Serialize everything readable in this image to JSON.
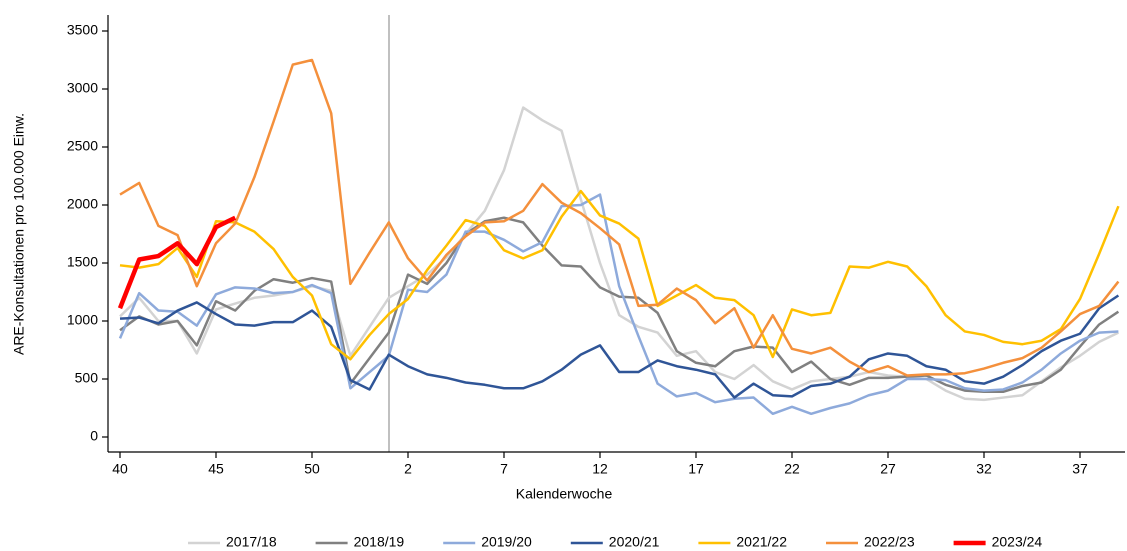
{
  "chart_data": {
    "type": "line",
    "x_label": "Kalenderwoche",
    "y_label": "ARE-Konsultationen pro 100.000 Einw.",
    "categories": [
      "40",
      null,
      null,
      null,
      null,
      "45",
      null,
      null,
      null,
      null,
      "50",
      null,
      null,
      null,
      null,
      "2",
      null,
      null,
      null,
      null,
      "7",
      null,
      null,
      null,
      null,
      "12",
      null,
      null,
      null,
      null,
      "17",
      null,
      null,
      null,
      null,
      "22",
      null,
      null,
      null,
      null,
      "27",
      null,
      null,
      null,
      null,
      "32",
      null,
      null,
      null,
      null,
      "37",
      null,
      null
    ],
    "ylim": [
      0,
      3500
    ],
    "yticks": [
      0,
      500,
      1000,
      1500,
      2000,
      2500,
      3000,
      3500
    ],
    "legend": "bottom",
    "series": [
      {
        "name": "2017/18",
        "color": "#d3d3d3",
        "line_width": 2.5,
        "values": [
          1040,
          1200,
          1000,
          1000,
          720,
          1100,
          1150,
          1200,
          1220,
          1250,
          1300,
          1260,
          700,
          950,
          1200,
          1300,
          1400,
          1550,
          1750,
          1950,
          2300,
          2840,
          2730,
          2640,
          2050,
          1500,
          1050,
          950,
          900,
          700,
          740,
          560,
          500,
          620,
          480,
          410,
          480,
          500,
          520,
          560,
          530,
          520,
          500,
          400,
          330,
          320,
          340,
          360,
          480,
          600,
          700,
          820,
          900
        ]
      },
      {
        "name": "2018/19",
        "color": "#808080",
        "line_width": 2.5,
        "values": [
          920,
          1040,
          970,
          1000,
          790,
          1170,
          1090,
          1260,
          1360,
          1330,
          1370,
          1340,
          460,
          680,
          900,
          1400,
          1320,
          1500,
          1750,
          1860,
          1890,
          1850,
          1650,
          1480,
          1470,
          1290,
          1210,
          1200,
          1070,
          740,
          640,
          610,
          740,
          780,
          770,
          560,
          650,
          500,
          450,
          510,
          510,
          520,
          530,
          450,
          400,
          390,
          390,
          440,
          470,
          580,
          780,
          970,
          1080
        ]
      },
      {
        "name": "2019/20",
        "color": "#8eaadb",
        "line_width": 2.5,
        "values": [
          850,
          1240,
          1090,
          1080,
          960,
          1230,
          1290,
          1280,
          1240,
          1250,
          1310,
          1240,
          420,
          560,
          700,
          1270,
          1250,
          1400,
          1770,
          1770,
          1700,
          1600,
          1680,
          1990,
          2000,
          2090,
          1300,
          870,
          460,
          350,
          380,
          300,
          330,
          340,
          200,
          260,
          200,
          250,
          290,
          360,
          400,
          500,
          500,
          490,
          420,
          400,
          410,
          470,
          580,
          720,
          830,
          900,
          910
        ]
      },
      {
        "name": "2020/21",
        "color": "#2f5597",
        "line_width": 2.5,
        "values": [
          1020,
          1030,
          980,
          1090,
          1160,
          1060,
          970,
          960,
          990,
          990,
          1090,
          950,
          490,
          410,
          710,
          610,
          540,
          510,
          470,
          450,
          420,
          420,
          480,
          580,
          710,
          790,
          560,
          560,
          660,
          610,
          580,
          540,
          340,
          460,
          360,
          350,
          440,
          460,
          520,
          670,
          720,
          700,
          610,
          580,
          480,
          460,
          520,
          620,
          740,
          830,
          890,
          1110,
          1220
        ]
      },
      {
        "name": "2021/22",
        "color": "#ffc000",
        "line_width": 2.5,
        "values": [
          1480,
          1460,
          1490,
          1630,
          1380,
          1860,
          1850,
          1770,
          1620,
          1380,
          1220,
          800,
          670,
          880,
          1060,
          1190,
          1440,
          1650,
          1870,
          1820,
          1610,
          1540,
          1610,
          1900,
          2120,
          1910,
          1840,
          1710,
          1130,
          1220,
          1310,
          1200,
          1180,
          1050,
          690,
          1100,
          1050,
          1070,
          1470,
          1460,
          1510,
          1470,
          1300,
          1050,
          910,
          880,
          820,
          800,
          830,
          930,
          1190,
          1580,
          1990
        ]
      },
      {
        "name": "2022/23",
        "color": "#f4903c",
        "line_width": 2.5,
        "values": [
          2090,
          2190,
          1820,
          1740,
          1300,
          1670,
          1840,
          2240,
          2720,
          3210,
          3250,
          2790,
          1320,
          1590,
          1850,
          1540,
          1350,
          1570,
          1730,
          1850,
          1860,
          1950,
          2180,
          2020,
          1930,
          1800,
          1660,
          1130,
          1140,
          1280,
          1180,
          980,
          1110,
          770,
          1050,
          760,
          720,
          770,
          650,
          560,
          610,
          530,
          540,
          540,
          550,
          590,
          640,
          680,
          770,
          910,
          1060,
          1130,
          1340
        ]
      },
      {
        "name": "2023/24",
        "color": "#ff0000",
        "line_width": 4.5,
        "values": [
          1110,
          1530,
          1560,
          1670,
          1490,
          1810,
          1890,
          null,
          null,
          null,
          null,
          null,
          null,
          null,
          null,
          null,
          null,
          null,
          null,
          null,
          null,
          null,
          null,
          null,
          null,
          null,
          null,
          null,
          null,
          null,
          null,
          null,
          null,
          null,
          null,
          null,
          null,
          null,
          null,
          null,
          null,
          null,
          null,
          null,
          null,
          null,
          null,
          null,
          null,
          null,
          null,
          null,
          null
        ]
      }
    ]
  }
}
